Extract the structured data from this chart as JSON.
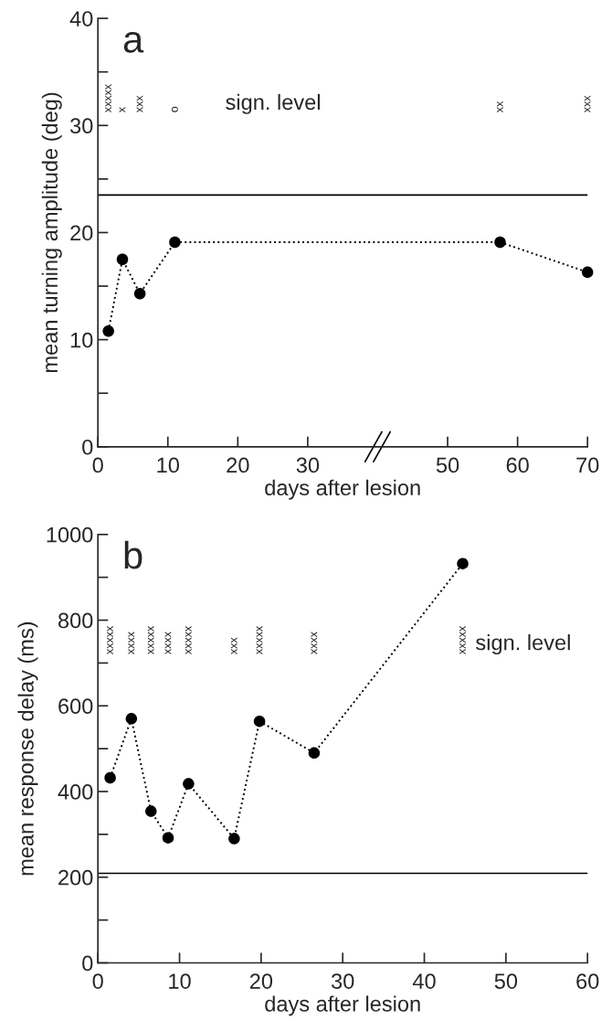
{
  "chart_data": [
    {
      "type": "line",
      "title": "a",
      "xlabel": "days after lesion",
      "ylabel": "mean turning amplitude (deg)",
      "x": [
        1.5,
        3.5,
        6,
        11,
        57.5,
        70
      ],
      "series": [
        {
          "color": "#000000",
          "values": [
            10.8,
            17.5,
            14.3,
            19.1,
            19.1,
            16.3
          ]
        }
      ],
      "marker": "circle",
      "line_style": "dotted",
      "xlim": [
        0,
        70
      ],
      "xticks": [
        0,
        10,
        20,
        30,
        50,
        60,
        70
      ],
      "ylim": [
        0,
        40
      ],
      "yticks": [
        0,
        {
          "value": 5,
          "label": null
        },
        10,
        {
          "value": 15,
          "label": null
        },
        20,
        {
          "value": 25,
          "label": null
        },
        30,
        {
          "value": 35,
          "label": null
        },
        40
      ],
      "ref_lines": [
        {
          "axis": "y",
          "value": 23.5,
          "color": "#000000",
          "line_style": "solid"
        }
      ],
      "annotations": [
        "xxxxx",
        "x",
        "xxx",
        "o",
        "xx",
        "xxx",
        "sign. level"
      ]
    },
    {
      "type": "line",
      "title": "b",
      "xlabel": "days after lesion",
      "ylabel": "mean response delay (ms)",
      "x": [
        1.5,
        4.1,
        6.5,
        8.6,
        11.1,
        16.7,
        19.8,
        26.5,
        44.7
      ],
      "series": [
        {
          "color": "#000000",
          "values": [
            432,
            570,
            354,
            292,
            418,
            290,
            564,
            490,
            932
          ]
        }
      ],
      "marker": "circle",
      "line_style": "dotted",
      "xlim": [
        0,
        60
      ],
      "xticks": [
        0,
        10,
        20,
        30,
        40,
        50,
        60
      ],
      "ylim": [
        0,
        1000
      ],
      "yticks": [
        0,
        {
          "value": 100,
          "label": null
        },
        200,
        {
          "value": 300,
          "label": null
        },
        400,
        {
          "value": 500,
          "label": null
        },
        600,
        {
          "value": 700,
          "label": null
        },
        800,
        {
          "value": 900,
          "label": null
        },
        1000
      ],
      "ref_lines": [
        {
          "axis": "y",
          "value": 209,
          "color": "#000000",
          "line_style": "solid"
        }
      ],
      "annotations": [
        "xxxxx",
        "xxxx",
        "xxxxx",
        "xxxx",
        "xxxxx",
        "xxx",
        "xxxxx",
        "xxxx",
        "xxxxx",
        "sign. level"
      ]
    }
  ]
}
